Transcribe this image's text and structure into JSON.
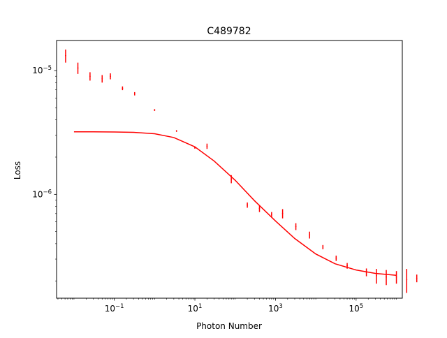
{
  "chart_data": {
    "type": "scatter",
    "title": "C489782",
    "xlabel": "Photon Number",
    "ylabel": "Loss",
    "xscale": "log",
    "yscale": "log",
    "xlim": [
      0.0037,
      1400000
    ],
    "ylim": [
      1.45e-07,
      1.75e-05
    ],
    "grid": false,
    "x_ticks": [
      {
        "value": 0.1,
        "base": "10",
        "exp": "−1"
      },
      {
        "value": 10,
        "base": "10",
        "exp": "1"
      },
      {
        "value": 1000,
        "base": "10",
        "exp": "3"
      },
      {
        "value": 100000,
        "base": "10",
        "exp": "5"
      }
    ],
    "y_ticks": [
      {
        "value": 1e-05,
        "base": "10",
        "exp": "−5"
      },
      {
        "value": 1e-06,
        "base": "10",
        "exp": "−6"
      }
    ],
    "color": "#ff0000",
    "series": [
      {
        "kind": "errorbar",
        "x": [
          0.0062,
          0.0125,
          0.025,
          0.05,
          0.08,
          0.16,
          0.32,
          1.0,
          3.5,
          10,
          20,
          80,
          200,
          400,
          800,
          1500,
          3200,
          7000,
          15000,
          32000,
          60000,
          180000,
          320000,
          560000,
          1000000,
          1800000,
          3200000
        ],
        "y": [
          1.32e-05,
          1.05e-05,
          9e-06,
          8.6e-06,
          9e-06,
          7.2e-06,
          6.5e-06,
          4.8e-06,
          3.25e-06,
          2.38e-06,
          2.45e-06,
          1.33e-06,
          8.2e-07,
          7.7e-07,
          6.9e-07,
          7e-07,
          5.5e-07,
          4.7e-07,
          3.75e-07,
          3.05e-07,
          2.65e-07,
          2.35e-07,
          2.2e-07,
          2.15e-07,
          2.15e-07,
          2.05e-07,
          2.1e-07
        ],
        "yerr": [
          1.6e-06,
          1.1e-06,
          7e-07,
          6e-07,
          5e-07,
          2.5e-07,
          2e-07,
          8e-08,
          5e-08,
          4e-08,
          1.2e-07,
          1e-07,
          4e-08,
          5e-08,
          3e-08,
          6e-08,
          3.5e-08,
          3e-08,
          1.5e-08,
          1.5e-08,
          1.4e-08,
          1.7e-08,
          3e-08,
          3e-08,
          2.5e-08,
          4.5e-08,
          1.5e-08
        ]
      },
      {
        "kind": "line",
        "x": [
          0.01,
          0.03,
          0.1,
          0.3,
          1,
          3,
          10,
          30,
          100,
          300,
          1000,
          3000,
          10000,
          30000,
          100000,
          300000,
          1000000
        ],
        "y": [
          3.2e-06,
          3.2e-06,
          3.19e-06,
          3.17e-06,
          3.09e-06,
          2.88e-06,
          2.42e-06,
          1.86e-06,
          1.3e-06,
          8.9e-07,
          6.1e-07,
          4.4e-07,
          3.3e-07,
          2.75e-07,
          2.45e-07,
          2.3e-07,
          2.22e-07
        ]
      }
    ]
  }
}
